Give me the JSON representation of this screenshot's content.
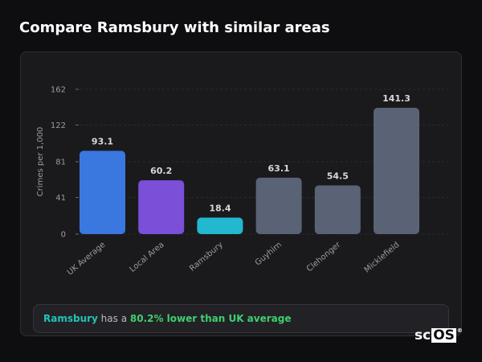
{
  "page": {
    "title": "Compare Ramsbury with similar areas"
  },
  "summary": {
    "area_name": "Ramsbury",
    "middle_text": " has a ",
    "verdict": "80.2% lower than UK average"
  },
  "logo": {
    "prefix": "sc",
    "boxed": "OS",
    "mark": "®"
  },
  "chart_data": {
    "type": "bar",
    "title": "",
    "xlabel": "",
    "ylabel": "Crimes per 1,000",
    "ylim": [
      0,
      162
    ],
    "yticks": [
      0,
      41,
      81,
      122,
      162
    ],
    "grid": true,
    "categories": [
      "UK Average",
      "Local Area",
      "Ramsbury",
      "Guyhirn",
      "Clehonger",
      "Micklefield"
    ],
    "values": [
      93.1,
      60.2,
      18.4,
      63.1,
      54.5,
      141.3
    ],
    "value_labels": [
      "93.1",
      "60.2",
      "18.4",
      "63.1",
      "54.5",
      "141.3"
    ],
    "colors": [
      "#3a78e0",
      "#7b4fd8",
      "#22b8d0",
      "#5a6275",
      "#5a6275",
      "#5a6275"
    ]
  }
}
